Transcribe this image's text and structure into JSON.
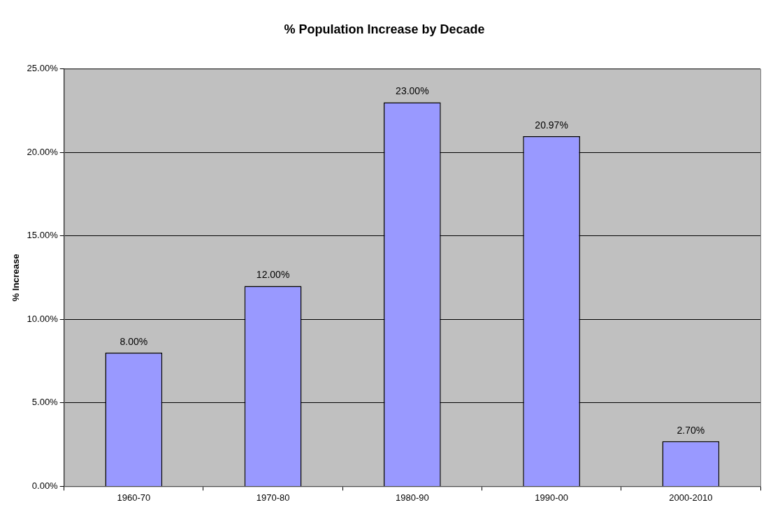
{
  "chart_data": {
    "type": "bar",
    "title": "% Population Increase by Decade",
    "ylabel": "% Increase",
    "categories": [
      "1960-70",
      "1970-80",
      "1980-90",
      "1990-00",
      "2000-2010"
    ],
    "values": [
      8,
      12,
      23,
      20.97,
      2.7
    ],
    "value_labels": [
      "8.00%",
      "12.00%",
      "23.00%",
      "20.97%",
      "2.70%"
    ],
    "color": "#9999ff",
    "ylim": [
      0,
      25
    ],
    "yticks": [
      {
        "value": 0,
        "label": "0.00%"
      },
      {
        "value": 5,
        "label": "5.00%"
      },
      {
        "value": 10,
        "label": "10.00%"
      },
      {
        "value": 15,
        "label": "15.00%"
      },
      {
        "value": 20,
        "label": "20.00%"
      },
      {
        "value": 25,
        "label": "25.00%"
      }
    ],
    "grid": "y",
    "legend": false
  }
}
